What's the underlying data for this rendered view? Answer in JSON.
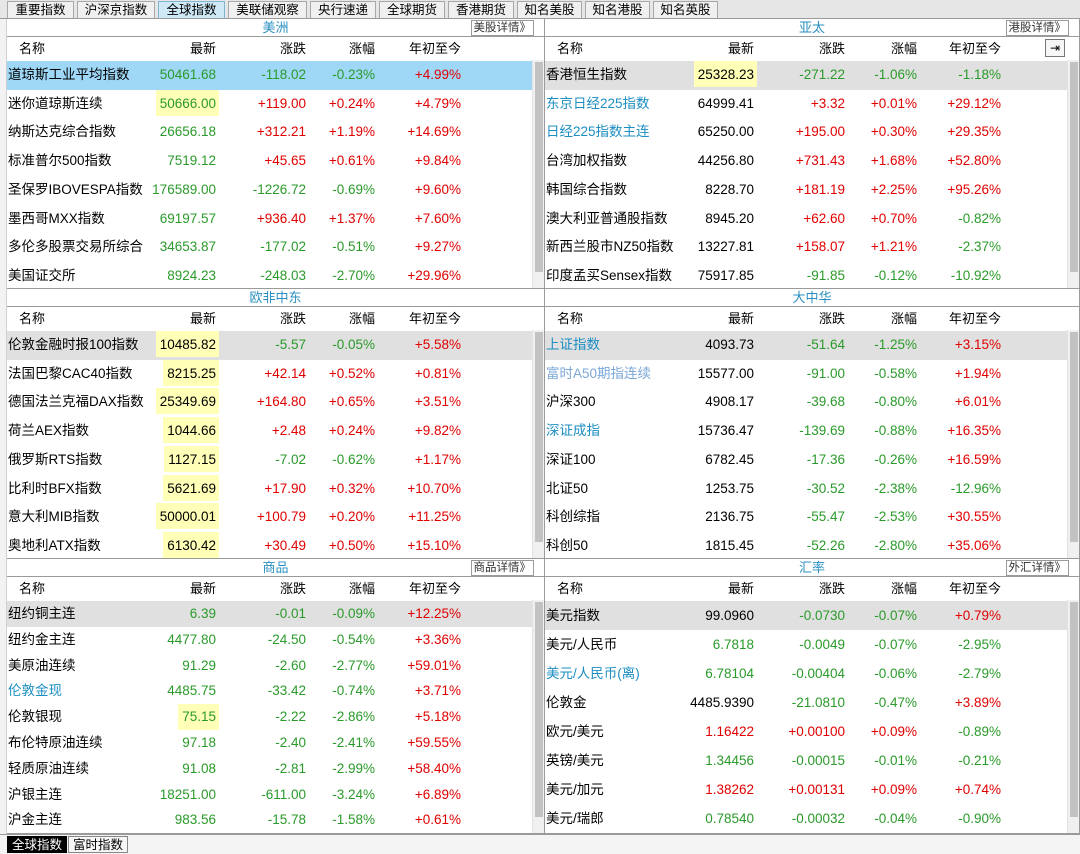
{
  "tabs": [
    {
      "label": "重要指数",
      "active": false
    },
    {
      "label": "沪深京指数",
      "active": false
    },
    {
      "label": "全球指数",
      "active": true
    },
    {
      "label": "美联储观察",
      "active": false
    },
    {
      "label": "央行速递",
      "active": false
    },
    {
      "label": "全球期货",
      "active": false
    },
    {
      "label": "香港期货",
      "active": false
    },
    {
      "label": "知名美股",
      "active": false
    },
    {
      "label": "知名港股",
      "active": false
    },
    {
      "label": "知名英股",
      "active": false
    }
  ],
  "columns": {
    "name": "名称",
    "last": "最新",
    "change": "涨跌",
    "pct": "涨幅",
    "ytd": "年初至今"
  },
  "panels": {
    "americas": {
      "title": "美洲",
      "detail": "美股详情》",
      "rows": [
        {
          "name": "道琼斯工业平均指数",
          "last": "50461.68",
          "change": "-118.02",
          "pct": "-0.23%",
          "ytd": "+4.99%"
        },
        {
          "name": "迷你道琼斯连续",
          "last": "50666.00",
          "change": "+119.00",
          "pct": "+0.24%",
          "ytd": "+4.79%"
        },
        {
          "name": "纳斯达克综合指数",
          "last": "26656.18",
          "change": "+312.21",
          "pct": "+1.19%",
          "ytd": "+14.69%"
        },
        {
          "name": "标准普尔500指数",
          "last": "7519.12",
          "change": "+45.65",
          "pct": "+0.61%",
          "ytd": "+9.84%"
        },
        {
          "name": "圣保罗IBOVESPA指数",
          "last": "176589.00",
          "change": "-1226.72",
          "pct": "-0.69%",
          "ytd": "+9.60%"
        },
        {
          "name": "墨西哥MXX指数",
          "last": "69197.57",
          "change": "+936.40",
          "pct": "+1.37%",
          "ytd": "+7.60%"
        },
        {
          "name": "多伦多股票交易所综合",
          "last": "34653.87",
          "change": "-177.02",
          "pct": "-0.51%",
          "ytd": "+9.27%"
        },
        {
          "name": "美国证交所",
          "last": "8924.23",
          "change": "-248.03",
          "pct": "-2.70%",
          "ytd": "+29.96%"
        }
      ]
    },
    "apac": {
      "title": "亚太",
      "detail": "港股详情》",
      "rows": [
        {
          "name": "香港恒生指数",
          "last": "25328.23",
          "change": "-271.22",
          "pct": "-1.06%",
          "ytd": "-1.18%"
        },
        {
          "name": "东京日经225指数",
          "last": "64999.41",
          "change": "+3.32",
          "pct": "+0.01%",
          "ytd": "+29.12%"
        },
        {
          "name": "日经225指数主连",
          "last": "65250.00",
          "change": "+195.00",
          "pct": "+0.30%",
          "ytd": "+29.35%"
        },
        {
          "name": "台湾加权指数",
          "last": "44256.80",
          "change": "+731.43",
          "pct": "+1.68%",
          "ytd": "+52.80%"
        },
        {
          "name": "韩国综合指数",
          "last": "8228.70",
          "change": "+181.19",
          "pct": "+2.25%",
          "ytd": "+95.26%"
        },
        {
          "name": "澳大利亚普通股指数",
          "last": "8945.20",
          "change": "+62.60",
          "pct": "+0.70%",
          "ytd": "-0.82%"
        },
        {
          "name": "新西兰股市NZ50指数",
          "last": "13227.81",
          "change": "+158.07",
          "pct": "+1.21%",
          "ytd": "-2.37%"
        },
        {
          "name": "印度孟买Sensex指数",
          "last": "75917.85",
          "change": "-91.85",
          "pct": "-0.12%",
          "ytd": "-10.92%"
        }
      ]
    },
    "emea": {
      "title": "欧非中东",
      "detail": "",
      "rows": [
        {
          "name": "伦敦金融时报100指数",
          "last": "10485.82",
          "change": "-5.57",
          "pct": "-0.05%",
          "ytd": "+5.58%"
        },
        {
          "name": "法国巴黎CAC40指数",
          "last": "8215.25",
          "change": "+42.14",
          "pct": "+0.52%",
          "ytd": "+0.81%"
        },
        {
          "name": "德国法兰克福DAX指数",
          "last": "25349.69",
          "change": "+164.80",
          "pct": "+0.65%",
          "ytd": "+3.51%"
        },
        {
          "name": "荷兰AEX指数",
          "last": "1044.66",
          "change": "+2.48",
          "pct": "+0.24%",
          "ytd": "+9.82%"
        },
        {
          "name": "俄罗斯RTS指数",
          "last": "1127.15",
          "change": "-7.02",
          "pct": "-0.62%",
          "ytd": "+1.17%"
        },
        {
          "name": "比利时BFX指数",
          "last": "5621.69",
          "change": "+17.90",
          "pct": "+0.32%",
          "ytd": "+10.70%"
        },
        {
          "name": "意大利MIB指数",
          "last": "50000.01",
          "change": "+100.79",
          "pct": "+0.20%",
          "ytd": "+11.25%"
        },
        {
          "name": "奥地利ATX指数",
          "last": "6130.42",
          "change": "+30.49",
          "pct": "+0.50%",
          "ytd": "+15.10%"
        }
      ]
    },
    "greater_china": {
      "title": "大中华",
      "detail": "",
      "rows": [
        {
          "name": "上证指数",
          "last": "4093.73",
          "change": "-51.64",
          "pct": "-1.25%",
          "ytd": "+3.15%"
        },
        {
          "name": "富时A50期指连续",
          "last": "15577.00",
          "change": "-91.00",
          "pct": "-0.58%",
          "ytd": "+1.94%"
        },
        {
          "name": "沪深300",
          "last": "4908.17",
          "change": "-39.68",
          "pct": "-0.80%",
          "ytd": "+6.01%"
        },
        {
          "name": "深证成指",
          "last": "15736.47",
          "change": "-139.69",
          "pct": "-0.88%",
          "ytd": "+16.35%"
        },
        {
          "name": "深证100",
          "last": "6782.45",
          "change": "-17.36",
          "pct": "-0.26%",
          "ytd": "+16.59%"
        },
        {
          "name": "北证50",
          "last": "1253.75",
          "change": "-30.52",
          "pct": "-2.38%",
          "ytd": "-12.96%"
        },
        {
          "name": "科创综指",
          "last": "2136.75",
          "change": "-55.47",
          "pct": "-2.53%",
          "ytd": "+30.55%"
        },
        {
          "name": "科创50",
          "last": "1815.45",
          "change": "-52.26",
          "pct": "-2.80%",
          "ytd": "+35.06%"
        }
      ]
    },
    "commodities": {
      "title": "商品",
      "detail": "商品详情》",
      "rows": [
        {
          "name": "纽约铜主连",
          "last": "6.39",
          "change": "-0.01",
          "pct": "-0.09%",
          "ytd": "+12.25%"
        },
        {
          "name": "纽约金主连",
          "last": "4477.80",
          "change": "-24.50",
          "pct": "-0.54%",
          "ytd": "+3.36%"
        },
        {
          "name": "美原油连续",
          "last": "91.29",
          "change": "-2.60",
          "pct": "-2.77%",
          "ytd": "+59.01%"
        },
        {
          "name": "伦敦金现",
          "last": "4485.75",
          "change": "-33.42",
          "pct": "-0.74%",
          "ytd": "+3.71%"
        },
        {
          "name": "伦敦银现",
          "last": "75.15",
          "change": "-2.22",
          "pct": "-2.86%",
          "ytd": "+5.18%"
        },
        {
          "name": "布伦特原油连续",
          "last": "97.18",
          "change": "-2.40",
          "pct": "-2.41%",
          "ytd": "+59.55%"
        },
        {
          "name": "轻质原油连续",
          "last": "91.08",
          "change": "-2.81",
          "pct": "-2.99%",
          "ytd": "+58.40%"
        },
        {
          "name": "沪银主连",
          "last": "18251.00",
          "change": "-611.00",
          "pct": "-3.24%",
          "ytd": "+6.89%"
        },
        {
          "name": "沪金主连",
          "last": "983.56",
          "change": "-15.78",
          "pct": "-1.58%",
          "ytd": "+0.61%"
        }
      ]
    },
    "fx": {
      "title": "汇率",
      "detail": "外汇详情》",
      "rows": [
        {
          "name": "美元指数",
          "last": "99.0960",
          "change": "-0.0730",
          "pct": "-0.07%",
          "ytd": "+0.79%"
        },
        {
          "name": "美元/人民币",
          "last": "6.7818",
          "change": "-0.0049",
          "pct": "-0.07%",
          "ytd": "-2.95%"
        },
        {
          "name": "美元/人民币(离)",
          "last": "6.78104",
          "change": "-0.00404",
          "pct": "-0.06%",
          "ytd": "-2.79%"
        },
        {
          "name": "伦敦金",
          "last": "4485.9390",
          "change": "-21.0810",
          "pct": "-0.47%",
          "ytd": "+3.89%"
        },
        {
          "name": "欧元/美元",
          "last": "1.16422",
          "change": "+0.00100",
          "pct": "+0.09%",
          "ytd": "-0.89%"
        },
        {
          "name": "英镑/美元",
          "last": "1.34456",
          "change": "-0.00015",
          "pct": "-0.01%",
          "ytd": "-0.21%"
        },
        {
          "name": "美元/加元",
          "last": "1.38262",
          "change": "+0.00131",
          "pct": "+0.09%",
          "ytd": "+0.74%"
        },
        {
          "name": "美元/瑞郎",
          "last": "0.78540",
          "change": "-0.00032",
          "pct": "-0.04%",
          "ytd": "-0.90%"
        }
      ]
    }
  },
  "bottom_tabs": [
    {
      "label": "全球指数",
      "active": true
    },
    {
      "label": "富时指数",
      "active": false
    }
  ],
  "colors": {
    "up": "#e00000",
    "down": "#2a9a2a",
    "title": "#2a8fc0",
    "selected_row": "#9fd7f7",
    "highlight": "#ffffb8"
  },
  "icons": {
    "pin": "pin-right-icon"
  }
}
